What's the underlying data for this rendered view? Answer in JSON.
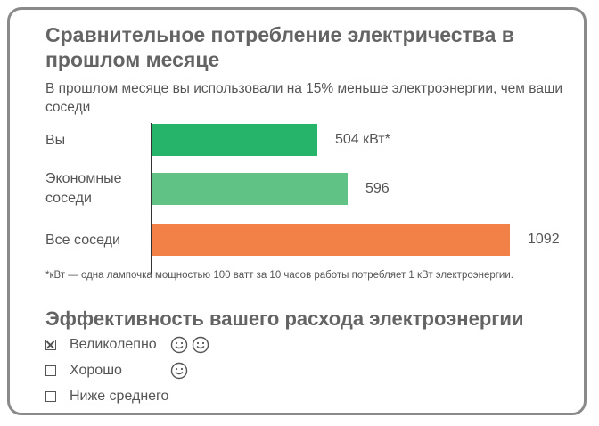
{
  "chart_data": {
    "type": "bar",
    "orientation": "horizontal",
    "title": "Сравнительное потребление электричества в прошлом месяце",
    "subtitle": "В прошлом месяце вы использовали на 15% меньше электроэнергии, чем ваши соседи",
    "categories": [
      {
        "lines": [
          "Вы"
        ]
      },
      {
        "lines": [
          "Экономные",
          "соседи"
        ]
      },
      {
        "lines": [
          "Все соседи"
        ]
      }
    ],
    "values": [
      504,
      596,
      1092
    ],
    "value_labels": [
      "504 кВт*",
      "596",
      "1092"
    ],
    "colors": [
      "#26b46a",
      "#61c286",
      "#f28147"
    ],
    "xlim": [
      0,
      1150
    ],
    "grid": false,
    "footnote": "*кВт — одна лампочка мощностью 100 ватт за 10 часов работы потребляет 1 кВт электроэнергии."
  },
  "efficiency": {
    "title": "Эффективность вашего расхода электроэнергии",
    "options": [
      {
        "label": "Великолепно",
        "checked": true,
        "smileys": 2
      },
      {
        "label": "Хорошо",
        "checked": false,
        "smileys": 1
      },
      {
        "label": "Ниже среднего",
        "checked": false,
        "smileys": 0
      }
    ],
    "smiley_icon": "smiley-face-icon"
  }
}
